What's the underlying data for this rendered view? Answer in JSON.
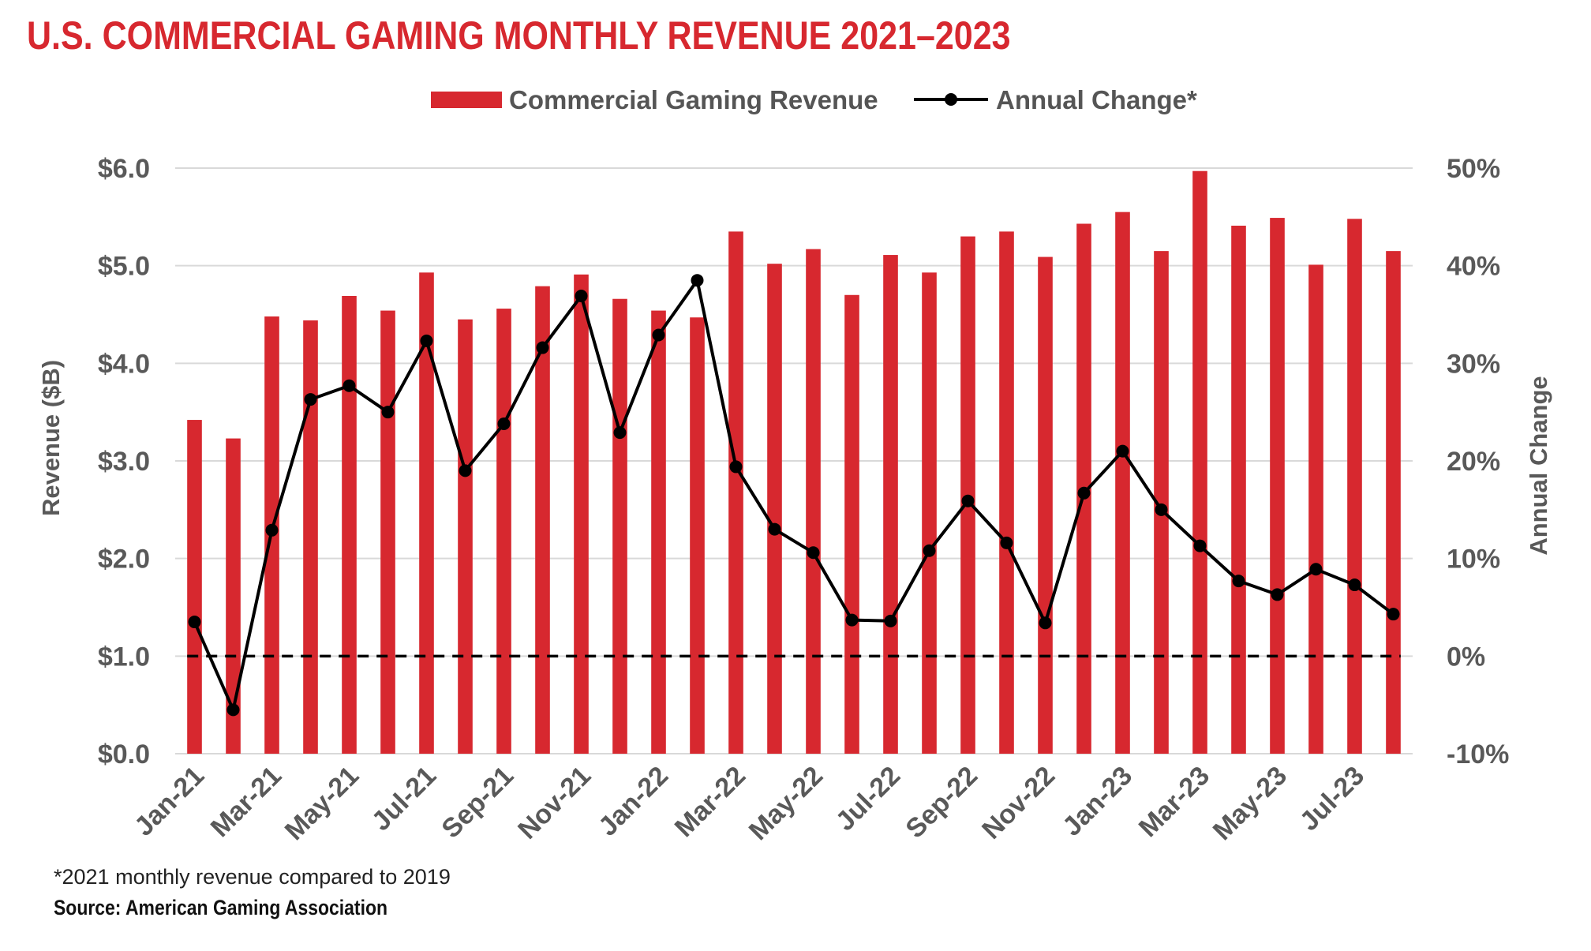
{
  "title": "U.S. COMMERCIAL GAMING MONTHLY REVENUE 2021–2023",
  "footnote": "*2021 monthly revenue compared to 2019",
  "source": "Source: American Gaming Association",
  "colors": {
    "bar": "#d7282f",
    "line": "#000000",
    "title": "#d7282f",
    "grid": "#d9d9d9"
  },
  "chart_data": {
    "type": "bar",
    "title": "U.S. COMMERCIAL GAMING MONTHLY REVENUE 2021–2023",
    "ylabel": "Revenue ($B)",
    "y2label": "Annual Change",
    "ylim": [
      0,
      6
    ],
    "y2lim": [
      -10,
      50
    ],
    "yticks": [
      "$0.0",
      "$1.0",
      "$2.0",
      "$3.0",
      "$4.0",
      "$5.0",
      "$6.0"
    ],
    "y2ticks": [
      "-10%",
      "0%",
      "10%",
      "20%",
      "30%",
      "40%",
      "50%"
    ],
    "grid": true,
    "legend_position": "top-center",
    "categories": [
      "Jan-21",
      "Feb-21",
      "Mar-21",
      "Apr-21",
      "May-21",
      "Jun-21",
      "Jul-21",
      "Aug-21",
      "Sep-21",
      "Oct-21",
      "Nov-21",
      "Dec-21",
      "Jan-22",
      "Feb-22",
      "Mar-22",
      "Apr-22",
      "May-22",
      "Jun-22",
      "Jul-22",
      "Aug-22",
      "Sep-22",
      "Oct-22",
      "Nov-22",
      "Dec-22",
      "Jan-23",
      "Feb-23",
      "Mar-23",
      "Apr-23",
      "May-23",
      "Jun-23",
      "Jul-23",
      "Aug-23"
    ],
    "x_tick_labels": [
      "Jan-21",
      "Mar-21",
      "May-21",
      "Jul-21",
      "Sep-21",
      "Nov-21",
      "Jan-22",
      "Mar-22",
      "May-22",
      "Jul-22",
      "Sep-22",
      "Nov-22",
      "Jan-23",
      "Mar-23",
      "May-23",
      "Jul-23"
    ],
    "series": [
      {
        "name": "Commercial Gaming Revenue",
        "type": "bar",
        "axis": "left",
        "values": [
          3.42,
          3.23,
          4.48,
          4.44,
          4.69,
          4.54,
          4.93,
          4.45,
          4.56,
          4.79,
          4.91,
          4.66,
          4.54,
          4.47,
          5.35,
          5.02,
          5.17,
          4.7,
          5.11,
          4.93,
          5.3,
          5.35,
          5.09,
          5.43,
          5.55,
          5.15,
          5.97,
          5.41,
          5.49,
          5.01,
          5.48,
          5.15
        ]
      },
      {
        "name": "Annual Change*",
        "type": "line",
        "axis": "right",
        "values": [
          3.5,
          -5.5,
          12.9,
          26.3,
          27.7,
          25.0,
          32.3,
          19.0,
          23.8,
          31.6,
          36.9,
          22.9,
          32.9,
          38.5,
          19.4,
          13.0,
          10.6,
          3.7,
          3.6,
          10.8,
          15.9,
          11.6,
          3.4,
          16.7,
          21.0,
          15.0,
          11.3,
          7.7,
          6.3,
          8.9,
          7.3,
          4.3
        ]
      }
    ],
    "reference_line": {
      "axis": "right",
      "value": 0,
      "style": "dashed"
    }
  }
}
